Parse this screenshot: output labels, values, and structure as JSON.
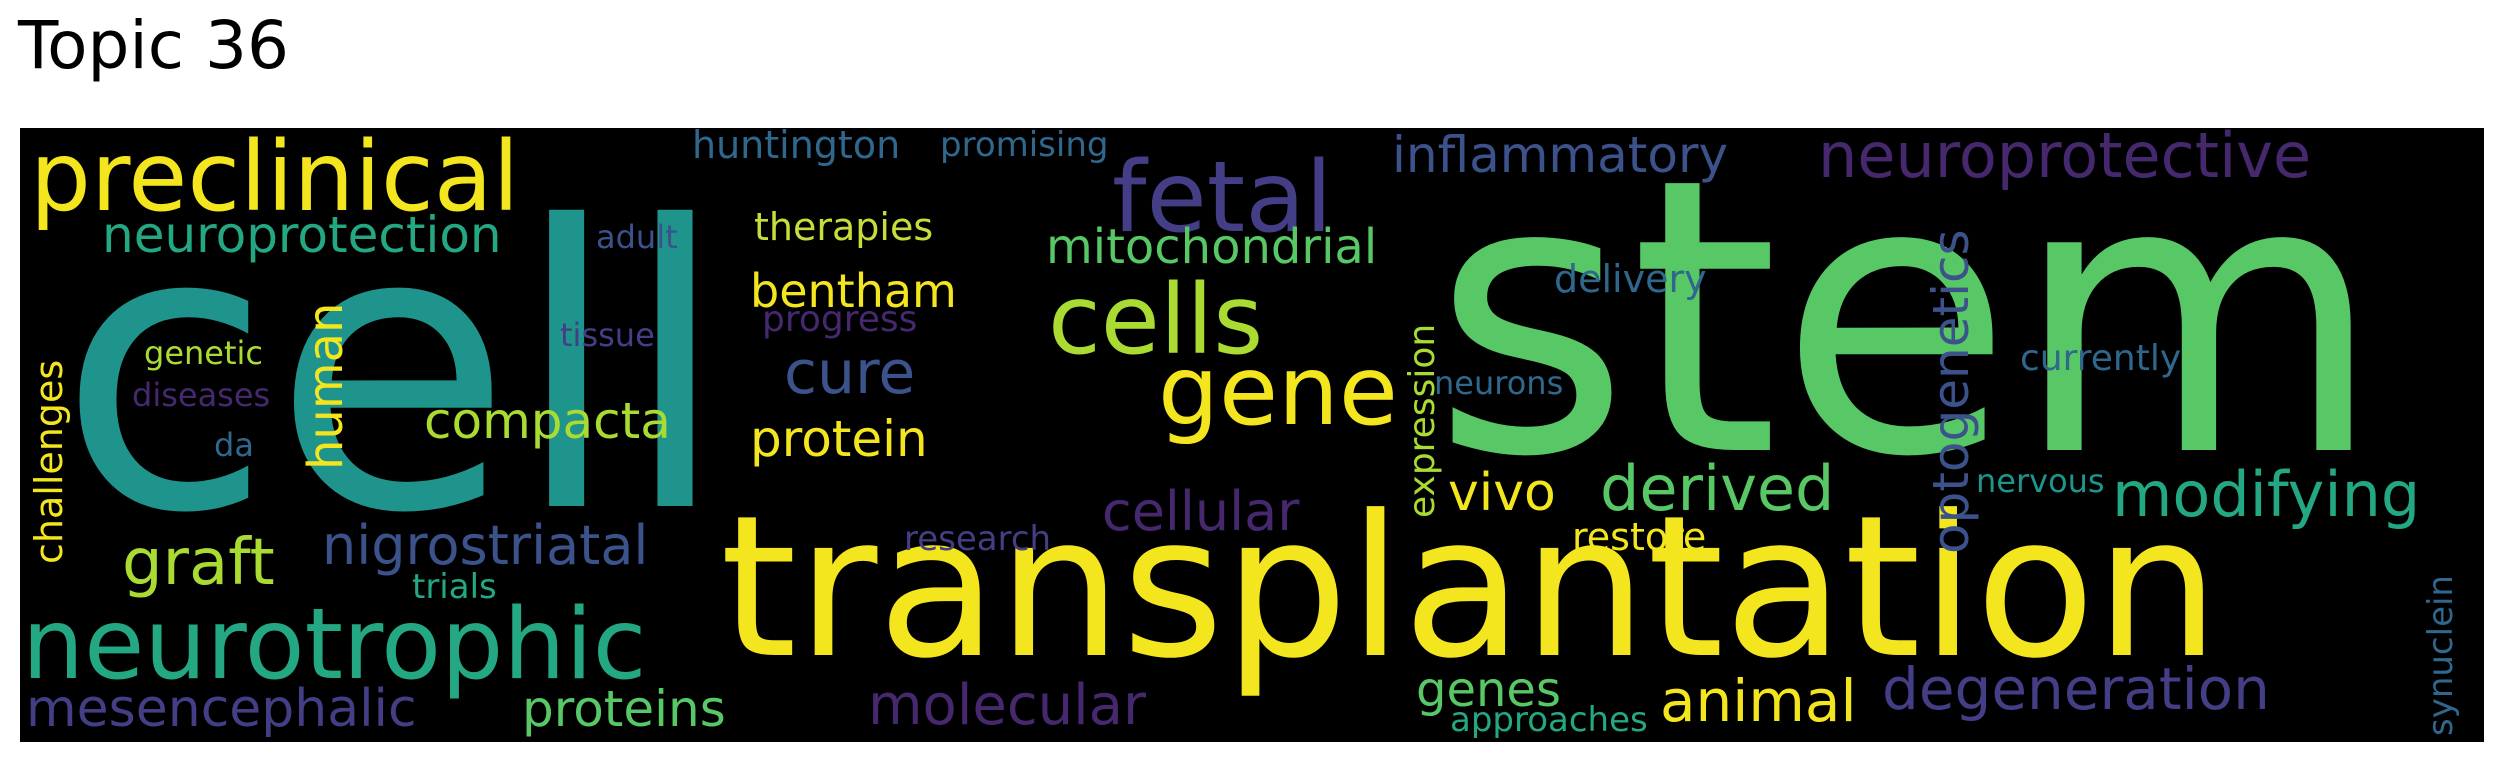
{
  "title": "Topic 36",
  "palette": {
    "background": "#000000",
    "dark_purple": "#46286f",
    "indigo": "#433e85",
    "slate_blue": "#3b528b",
    "steel_blue": "#30678d",
    "teal": "#1f948c",
    "sea_green": "#23a883",
    "green": "#58c766",
    "lime": "#a9db33",
    "yellow": "#f4e61e"
  },
  "words": [
    {
      "text": "stem",
      "color": "#58c766"
    },
    {
      "text": "cell",
      "color": "#1f948c"
    },
    {
      "text": "transplantation",
      "color": "#f4e61e"
    },
    {
      "text": "preclinical",
      "color": "#f4e61e"
    },
    {
      "text": "neurotrophic",
      "color": "#23a883"
    },
    {
      "text": "fetal",
      "color": "#433e85"
    },
    {
      "text": "cells",
      "color": "#a9db33"
    },
    {
      "text": "gene",
      "color": "#f4e61e"
    },
    {
      "text": "neuroprotective",
      "color": "#46286f"
    },
    {
      "text": "inflammatory",
      "color": "#3b528b"
    },
    {
      "text": "neuroprotection",
      "color": "#23a883"
    },
    {
      "text": "mitochondrial",
      "color": "#58c766"
    },
    {
      "text": "huntington",
      "color": "#30678d"
    },
    {
      "text": "promising",
      "color": "#30678d"
    },
    {
      "text": "adult",
      "color": "#3b528b"
    },
    {
      "text": "therapies",
      "color": "#c8dd3a"
    },
    {
      "text": "bentham",
      "color": "#f4e61e"
    },
    {
      "text": "progress",
      "color": "#46286f"
    },
    {
      "text": "cure",
      "color": "#3b528b"
    },
    {
      "text": "protein",
      "color": "#f4e61e"
    },
    {
      "text": "compacta",
      "color": "#a9db33"
    },
    {
      "text": "human",
      "color": "#f4e61e"
    },
    {
      "text": "genetic",
      "color": "#a9db33"
    },
    {
      "text": "tissue",
      "color": "#433e85"
    },
    {
      "text": "diseases",
      "color": "#46286f"
    },
    {
      "text": "da",
      "color": "#30678d"
    },
    {
      "text": "challenges",
      "color": "#f4e61e"
    },
    {
      "text": "graft",
      "color": "#a9db33"
    },
    {
      "text": "nigrostriatal",
      "color": "#3b528b"
    },
    {
      "text": "trials",
      "color": "#23a883"
    },
    {
      "text": "research",
      "color": "#433e85"
    },
    {
      "text": "cellular",
      "color": "#46286f"
    },
    {
      "text": "mesencephalic",
      "color": "#433e85"
    },
    {
      "text": "proteins",
      "color": "#58c766"
    },
    {
      "text": "molecular",
      "color": "#46286f"
    },
    {
      "text": "expression",
      "color": "#a9db33"
    },
    {
      "text": "vivo",
      "color": "#f4e61e"
    },
    {
      "text": "derived",
      "color": "#58c766"
    },
    {
      "text": "delivery",
      "color": "#30678d"
    },
    {
      "text": "neurons",
      "color": "#30678d"
    },
    {
      "text": "restore",
      "color": "#f4e61e"
    },
    {
      "text": "optogenetics",
      "color": "#3b528b"
    },
    {
      "text": "currently",
      "color": "#30678d"
    },
    {
      "text": "modifying",
      "color": "#23a883"
    },
    {
      "text": "nervous",
      "color": "#1f948c"
    },
    {
      "text": "synuclein",
      "color": "#30678d"
    },
    {
      "text": "genes",
      "color": "#58c766"
    },
    {
      "text": "approaches",
      "color": "#23a883"
    },
    {
      "text": "animal",
      "color": "#f4e61e"
    },
    {
      "text": "degeneration",
      "color": "#433e85"
    }
  ]
}
